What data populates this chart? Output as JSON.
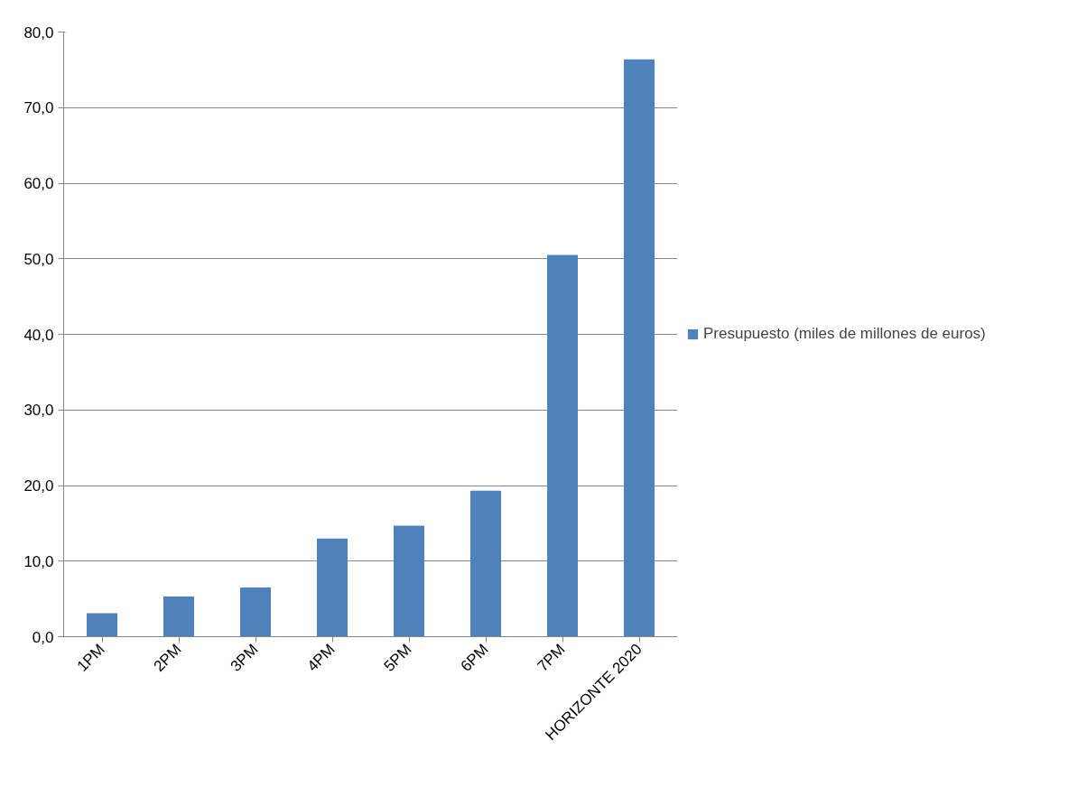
{
  "chart_data": {
    "type": "bar",
    "categories": [
      "1PM",
      "2PM",
      "3PM",
      "4PM",
      "5PM",
      "6PM",
      "7PM",
      "HORIZONTE 2020"
    ],
    "series": [
      {
        "name": "Presupuesto (miles de millones de euros)",
        "color": "#4f81bd",
        "values": [
          3.1,
          5.3,
          6.5,
          13.0,
          14.7,
          19.3,
          50.5,
          76.4
        ]
      }
    ],
    "ylim": [
      0,
      80
    ],
    "yticks": [
      {
        "value": 0,
        "label": "0,0"
      },
      {
        "value": 10,
        "label": "10,0"
      },
      {
        "value": 20,
        "label": "20,0"
      },
      {
        "value": 30,
        "label": "30,0"
      },
      {
        "value": 40,
        "label": "40,0"
      },
      {
        "value": 50,
        "label": "50,0"
      },
      {
        "value": 60,
        "label": "60,0"
      },
      {
        "value": 70,
        "label": "70,0"
      },
      {
        "value": 80,
        "label": "80,0"
      }
    ],
    "grid": "y",
    "legend": "right"
  }
}
